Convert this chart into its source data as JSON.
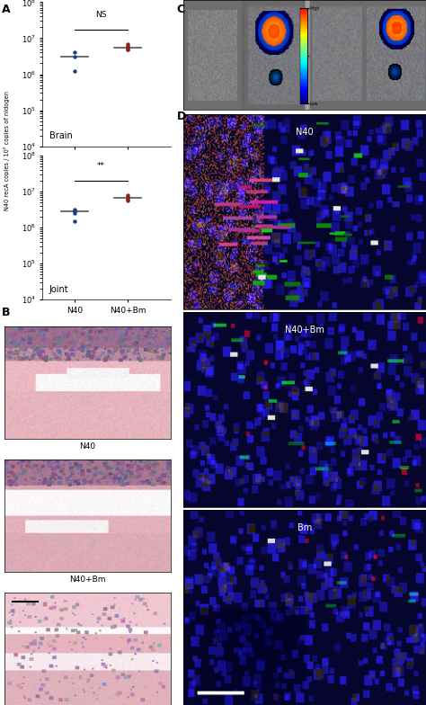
{
  "panel_A": {
    "brain": {
      "N40_values": [
        4000000,
        3000000,
        1200000
      ],
      "N40Bm_values": [
        6000000,
        5500000,
        5000000,
        4800000,
        7000000
      ],
      "N40_median": 3000000,
      "N40Bm_median": 5500000,
      "N40_color": "#1a3e8c",
      "N40Bm_color": "#8b2020",
      "significance": "NS",
      "label": "Brain",
      "ylim": [
        10000.0,
        100000000.0
      ],
      "yticks": [
        10000.0,
        100000.0,
        1000000.0,
        10000000.0,
        100000000.0
      ]
    },
    "joint": {
      "N40_values": [
        3000000,
        3200000,
        2800000,
        2500000,
        1500000
      ],
      "N40Bm_values": [
        7000000,
        6500000,
        6000000,
        5500000,
        8000000
      ],
      "N40_median": 2800000,
      "N40Bm_median": 6500000,
      "N40_color": "#1a3e8c",
      "N40Bm_color": "#8b2020",
      "significance": "**",
      "label": "Joint",
      "ylim": [
        10000.0,
        100000000.0
      ],
      "yticks": [
        10000.0,
        100000.0,
        1000000.0,
        10000000.0,
        100000000.0
      ]
    },
    "ylabel": "N40 recA copies / 10⁵ copies of nidogen",
    "xlabel_N40": "N40",
    "xlabel_N40Bm": "N40+Bm"
  },
  "figure_bg": "#ffffff",
  "label_fontsize": 9,
  "tick_fontsize": 6,
  "axis_fontsize": 6,
  "sublabel_fontsize": 6.5,
  "annotation_fontsize": 6.5
}
